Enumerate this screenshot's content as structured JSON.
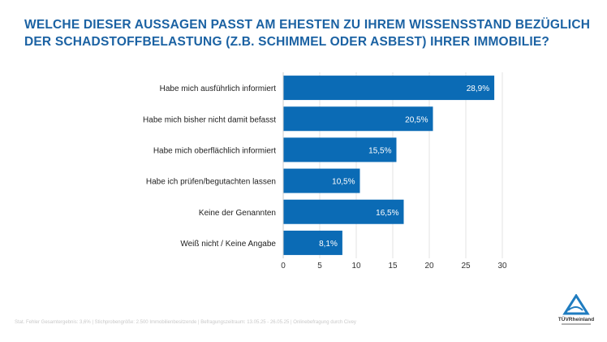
{
  "title": "WELCHE DIESER AUSSAGEN PASST AM EHESTEN ZU IHREM WISSENSSTAND BEZÜGLICH DER SCHADSTOFFBELASTUNG (Z.B. SCHIMMEL ODER ASBEST) IHRER IMMOBILIE?",
  "footer": "Stat. Fehler Gesamtergebnis: 3,6% | Stichprobengröße: 2.500 Immobilienbesitzende | Befragungszeitraum: 13.05.25 - 26.05.25 | Onlinebefragung durch Civey",
  "logo_text": "TÜVRheinland",
  "colors": {
    "bar": "#0b6bb5",
    "title": "#1b62a3",
    "logo": "#1f7cc0"
  },
  "chart_data": {
    "type": "bar",
    "orientation": "horizontal",
    "categories": [
      "Habe mich ausführlich informiert",
      "Habe mich bisher nicht damit befasst",
      "Habe mich oberflächlich informiert",
      "Habe ich prüfen/begutachten lassen",
      "Keine der Genannten",
      "Weiß nicht / Keine Angabe"
    ],
    "values": [
      28.9,
      20.5,
      15.5,
      10.5,
      16.5,
      8.1
    ],
    "data_labels": [
      "28,9%",
      "20,5%",
      "15,5%",
      "10,5%",
      "16,5%",
      "8,1%"
    ],
    "xlim": [
      0,
      30
    ],
    "xticks": [
      "0",
      "5",
      "10",
      "15",
      "20",
      "25",
      "30"
    ],
    "grid": true
  }
}
